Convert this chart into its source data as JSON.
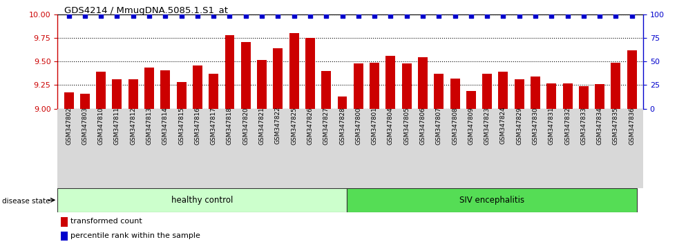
{
  "title": "GDS4214 / MmugDNA.5085.1.S1_at",
  "samples": [
    "GSM347802",
    "GSM347803",
    "GSM347810",
    "GSM347811",
    "GSM347812",
    "GSM347813",
    "GSM347814",
    "GSM347815",
    "GSM347816",
    "GSM347817",
    "GSM347818",
    "GSM347820",
    "GSM347821",
    "GSM347822",
    "GSM347825",
    "GSM347826",
    "GSM347827",
    "GSM347828",
    "GSM347800",
    "GSM347801",
    "GSM347804",
    "GSM347805",
    "GSM347806",
    "GSM347807",
    "GSM347808",
    "GSM347809",
    "GSM347823",
    "GSM347824",
    "GSM347829",
    "GSM347830",
    "GSM347831",
    "GSM347832",
    "GSM347833",
    "GSM347834",
    "GSM347835",
    "GSM347836"
  ],
  "bar_values": [
    9.17,
    9.16,
    9.39,
    9.31,
    9.31,
    9.44,
    9.41,
    9.28,
    9.46,
    9.37,
    9.78,
    9.71,
    9.52,
    9.64,
    9.8,
    9.75,
    9.4,
    9.13,
    9.48,
    9.49,
    9.56,
    9.48,
    9.55,
    9.37,
    9.32,
    9.19,
    9.37,
    9.39,
    9.31,
    9.34,
    9.27,
    9.27,
    9.24,
    9.26,
    9.49,
    9.62
  ],
  "percentile_right": [
    99,
    99,
    99,
    99,
    99,
    99,
    99,
    99,
    99,
    99,
    99,
    99,
    99,
    99,
    99,
    99,
    99,
    99,
    99,
    99,
    99,
    99,
    99,
    99,
    99,
    99,
    99,
    99,
    99,
    99,
    99,
    99,
    99,
    99,
    99,
    99
  ],
  "healthy_control_count": 18,
  "ylim_left": [
    9.0,
    10.0
  ],
  "ylim_right": [
    0,
    100
  ],
  "yticks_left": [
    9.0,
    9.25,
    9.5,
    9.75,
    10.0
  ],
  "yticks_right": [
    0,
    25,
    50,
    75,
    100
  ],
  "bar_color": "#CC0000",
  "dot_color": "#0000CC",
  "healthy_bg": "#CCFFCC",
  "siv_bg": "#55DD55",
  "label_healthy": "healthy control",
  "label_siv": "SIV encephalitis",
  "legend_bar": "transformed count",
  "legend_dot": "percentile rank within the sample",
  "disease_state_label": "disease state"
}
